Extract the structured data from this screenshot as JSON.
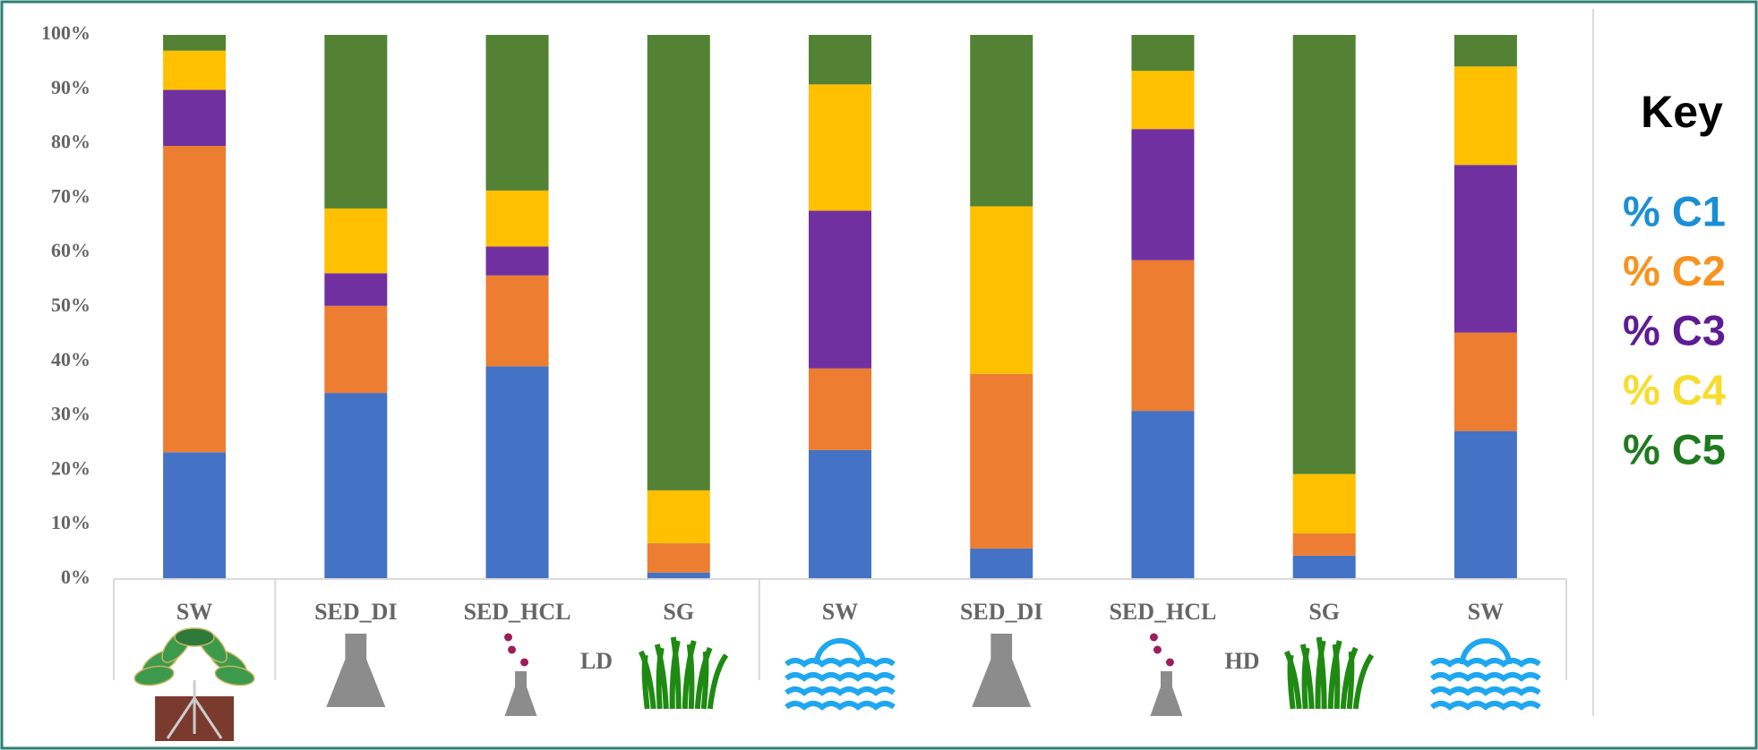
{
  "chart_data": {
    "type": "stacked_bar",
    "categories": [
      "SW",
      "SED_DI",
      "SED_HCL",
      "SG",
      "SW",
      "SED_DI",
      "SED_HCL",
      "SG",
      "SW"
    ],
    "group_labels": [
      "LD",
      "HD"
    ],
    "legend_title": "Key",
    "series": [
      {
        "name": "% C1",
        "color": "#4472c4",
        "legend_color": "#1b8fd6",
        "values": [
          23.3,
          34.2,
          39.1,
          1.2,
          23.7,
          5.6,
          30.9,
          4.3,
          27.2
        ]
      },
      {
        "name": "% C2",
        "color": "#ed7d31",
        "legend_color": "#f7931e",
        "values": [
          56.3,
          16.0,
          16.7,
          5.4,
          15.0,
          32.1,
          27.7,
          4.1,
          18.1
        ]
      },
      {
        "name": "% C3",
        "color": "#7030a0",
        "legend_color": "#5e1b96",
        "values": [
          10.3,
          6.0,
          5.3,
          0,
          29.0,
          0,
          24.1,
          0,
          30.8
        ]
      },
      {
        "name": "% C4",
        "color": "#ffc000",
        "legend_color": "#f7dc2c",
        "values": [
          7.2,
          11.9,
          10.3,
          9.7,
          23.2,
          30.8,
          10.7,
          10.9,
          18.1
        ]
      },
      {
        "name": "% C5",
        "color": "#548235",
        "legend_color": "#1f7a1f",
        "values": [
          2.9,
          31.9,
          28.6,
          83.7,
          9.1,
          31.5,
          6.6,
          80.7,
          5.8
        ]
      }
    ],
    "ylim": [
      0,
      100
    ],
    "yticks": [
      {
        "value": 0,
        "label": "0%"
      },
      {
        "value": 10,
        "label": "10%"
      },
      {
        "value": 20,
        "label": "20%"
      },
      {
        "value": 30,
        "label": "30%"
      },
      {
        "value": 40,
        "label": "40%"
      },
      {
        "value": 50,
        "label": "50%"
      },
      {
        "value": 60,
        "label": "60%"
      },
      {
        "value": 70,
        "label": "70%"
      },
      {
        "value": 80,
        "label": "80%"
      },
      {
        "value": 90,
        "label": "90%"
      },
      {
        "value": 100,
        "label": "100%"
      }
    ],
    "grid": false
  }
}
